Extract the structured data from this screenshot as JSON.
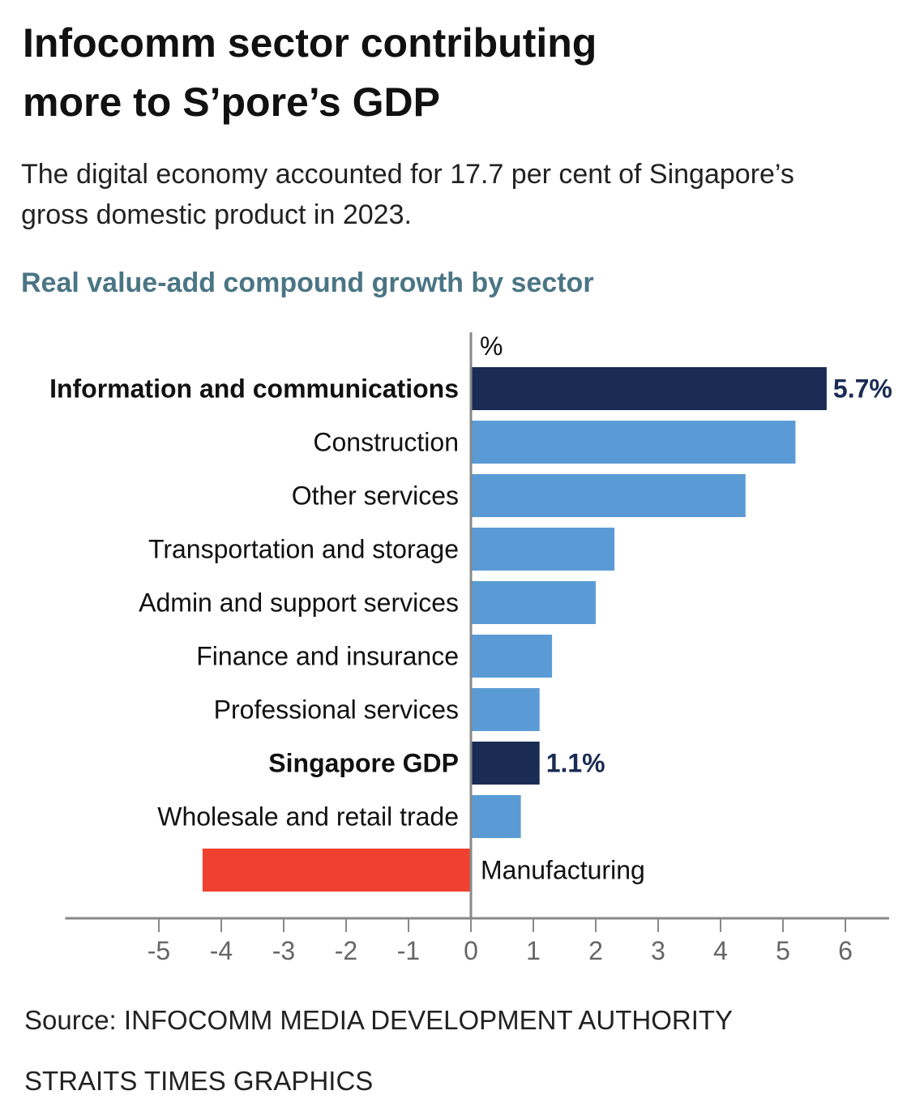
{
  "title_lines": [
    "Infocomm sector contributing",
    "more to S’pore’s GDP"
  ],
  "subtitle_lines": [
    "The digital economy accounted for 17.7 per cent of Singapore’s",
    "gross domestic product in 2023."
  ],
  "source": "Source: INFOCOMM MEDIA DEVELOPMENT AUTHORITY",
  "credit": "STRAITS TIMES GRAPHICS",
  "colors": {
    "highlight": "#1a2b54",
    "default": "#5b9bd5",
    "negative": "#f04030",
    "chart_title": "#4a7584"
  },
  "chart_data": {
    "type": "bar",
    "orientation": "horizontal",
    "title": "Real value-add compound growth by sector",
    "unit_label": "%",
    "categories": [
      "Information and communications",
      "Construction",
      "Other services",
      "Transportation and storage",
      "Admin and support services",
      "Finance and insurance",
      "Professional services",
      "Singapore GDP",
      "Wholesale and retail trade",
      "Manufacturing"
    ],
    "values": [
      5.7,
      5.2,
      4.4,
      2.3,
      2.0,
      1.3,
      1.1,
      1.1,
      0.8,
      -4.3
    ],
    "highlighted": [
      "Information and communications",
      "Singapore GDP"
    ],
    "data_labels": {
      "Information and communications": "5.7%",
      "Singapore GDP": "1.1%"
    },
    "xticks": [
      -5,
      -4,
      -3,
      -2,
      -1,
      0,
      1,
      2,
      3,
      4,
      5,
      6
    ],
    "xlim": [
      -6.5,
      6.7
    ],
    "grid": false
  }
}
